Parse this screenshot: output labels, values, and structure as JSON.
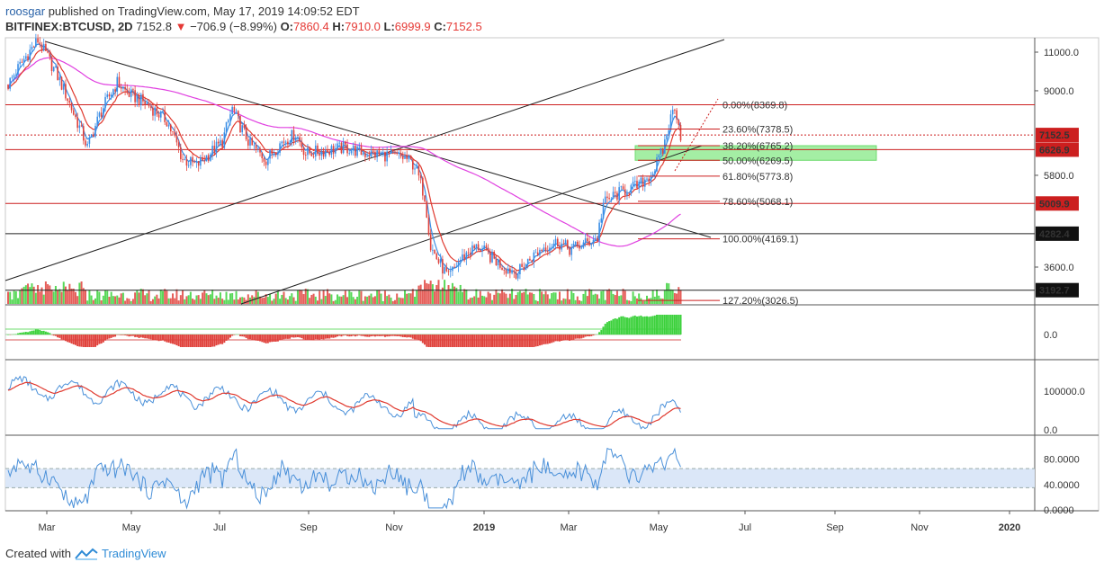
{
  "header": {
    "user": "roosgar",
    "published_text": "published on TradingView.com, May 17, 2019 14:09:52 EDT",
    "symbol": "BITFINEX:BTCUSD, 2D",
    "last": "7152.8",
    "change_arrow": "▼",
    "change": "−706.9 (−8.99%)",
    "o_label": "O:",
    "o_value": "7860.4",
    "h_label": "H:",
    "h_value": "7910.0",
    "l_label": "L:",
    "l_value": "6999.9",
    "c_label": "C:",
    "c_value": "7152.5"
  },
  "footer": {
    "created_with": "Created with",
    "brand": "TradingView"
  },
  "colors": {
    "up": "#3bd13b",
    "down": "#e0423c",
    "ma_red": "#e03a2f",
    "ma_blue": "#3a8ee6",
    "ma_magenta": "#e040e0",
    "fib_red": "#cc1f1f",
    "trend": "#222222",
    "zone": "#7ee87e",
    "rsi_band": "#dbe7f8",
    "osc_blue": "#4a90d9"
  },
  "chart_data": [
    {
      "type": "candlestick",
      "title": "BITFINEX:BTCUSD, 2D",
      "y_ticks": [
        11000,
        9000,
        7152.5,
        6626.9,
        5800,
        5009.9,
        4282.4,
        3600,
        3192.7
      ],
      "y_tick_labels": [
        "11000.0",
        "9000.0",
        "7152.5",
        "6626.9",
        "5800.0",
        "5009.9",
        "4282.4",
        "3600.0",
        "3192.7"
      ],
      "x_tick_labels": [
        "Mar",
        "May",
        "Jul",
        "Sep",
        "Nov",
        "2019",
        "Mar",
        "May",
        "Jul",
        "Sep",
        "Nov",
        "2020"
      ],
      "price_path": [
        [
          0,
          9300
        ],
        [
          8,
          10600
        ],
        [
          15,
          11700
        ],
        [
          25,
          9700
        ],
        [
          33,
          8000
        ],
        [
          40,
          6700
        ],
        [
          47,
          8100
        ],
        [
          55,
          9400
        ],
        [
          60,
          8900
        ],
        [
          70,
          8400
        ],
        [
          80,
          7700
        ],
        [
          88,
          6300
        ],
        [
          95,
          6100
        ],
        [
          100,
          6400
        ],
        [
          108,
          6900
        ],
        [
          113,
          8200
        ],
        [
          117,
          7500
        ],
        [
          122,
          6800
        ],
        [
          130,
          6300
        ],
        [
          138,
          6900
        ],
        [
          145,
          7200
        ],
        [
          150,
          6500
        ],
        [
          160,
          6600
        ],
        [
          170,
          6700
        ],
        [
          180,
          6500
        ],
        [
          190,
          6450
        ],
        [
          200,
          6350
        ],
        [
          205,
          6100
        ],
        [
          210,
          5200
        ],
        [
          213,
          4000
        ],
        [
          217,
          3700
        ],
        [
          222,
          3400
        ],
        [
          227,
          3700
        ],
        [
          232,
          3900
        ],
        [
          237,
          4000
        ],
        [
          243,
          3800
        ],
        [
          250,
          3600
        ],
        [
          257,
          3500
        ],
        [
          263,
          3750
        ],
        [
          270,
          4000
        ],
        [
          277,
          4100
        ],
        [
          283,
          3950
        ],
        [
          290,
          4050
        ],
        [
          297,
          4200
        ],
        [
          300,
          5000
        ],
        [
          305,
          5200
        ],
        [
          312,
          5400
        ],
        [
          318,
          5500
        ],
        [
          325,
          5900
        ],
        [
          330,
          6600
        ],
        [
          333,
          7500
        ],
        [
          336,
          8370
        ],
        [
          339,
          7152.5
        ]
      ],
      "moving_averages": [
        "red MA",
        "blue MA",
        "magenta MA"
      ],
      "fibonacci": [
        {
          "label": "0.00%(8369.8)",
          "value": 8369.8
        },
        {
          "label": "23.60%(7378.5)",
          "value": 7378.5
        },
        {
          "label": "38.20%(6765.2)",
          "value": 6765.2
        },
        {
          "label": "50.00%(6269.5)",
          "value": 6269.5
        },
        {
          "label": "61.80%(5773.8)",
          "value": 5773.8
        },
        {
          "label": "78.60%(5068.1)",
          "value": 5068.1
        },
        {
          "label": "100.00%(4169.1)",
          "value": 4169.1
        },
        {
          "label": "127.20%(3026.5)",
          "value": 3026.5
        }
      ],
      "horizontal_levels": [
        8369.8,
        7152.5,
        6626.9,
        5009.9,
        4282.4,
        3192.7
      ],
      "zone": {
        "from": 6269.5,
        "to": 6765.2
      }
    },
    {
      "type": "bar",
      "name": "histogram oscillator",
      "y_tick_labels": [
        "0.0"
      ]
    },
    {
      "type": "line",
      "name": "volume oscillator",
      "y_tick_labels": [
        "100000.0",
        "0.0"
      ]
    },
    {
      "type": "line",
      "name": "RSI",
      "y_tick_labels": [
        "80.0000",
        "40.0000",
        "0.0000"
      ],
      "band": [
        35,
        65
      ]
    }
  ]
}
